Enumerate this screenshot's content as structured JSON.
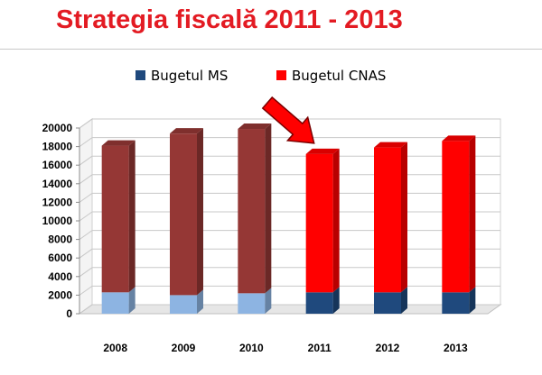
{
  "title": "Strategia fiscală 2011 - 2013",
  "chart_data": {
    "type": "bar",
    "stacked": true,
    "three_d": true,
    "categories": [
      "2008",
      "2009",
      "2010",
      "2011",
      "2012",
      "2013"
    ],
    "series": [
      {
        "name": "Bugetul MS",
        "values": [
          2300,
          2000,
          2200,
          2300,
          2300,
          2300
        ]
      },
      {
        "name": "Bugetul CNAS",
        "values": [
          15800,
          17400,
          17700,
          14900,
          15600,
          16300
        ]
      }
    ],
    "ylim": [
      0,
      20000
    ],
    "yticks": [
      0,
      2000,
      4000,
      6000,
      8000,
      10000,
      12000,
      14000,
      16000,
      18000,
      20000
    ],
    "grid": true,
    "legend_position": "top",
    "colors": {
      "ms_faded": "#8db4e2",
      "cnas_faded": "#953735",
      "ms": "#1f497d",
      "cnas": "#ff0000",
      "arrow": "#ff0000",
      "title": "#e31b23"
    },
    "highlighted_from": "2011"
  }
}
